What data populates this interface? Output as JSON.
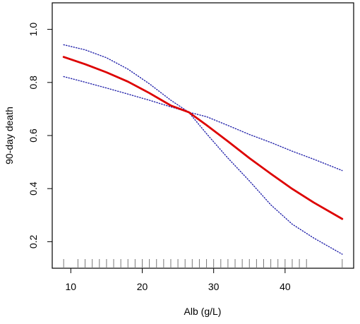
{
  "chart_data": {
    "type": "line",
    "xlabel": "Alb (g/L)",
    "ylabel": "90-day death",
    "xlim": [
      7.4,
      49.6
    ],
    "ylim": [
      0.1,
      1.1
    ],
    "x_ticks": [
      10,
      20,
      30,
      40
    ],
    "y_ticks": [
      0.2,
      0.4,
      0.6,
      0.8,
      1.0
    ],
    "x_tick_labels": [
      "10",
      "20",
      "30",
      "40"
    ],
    "y_tick_labels": [
      "0.2",
      "0.4",
      "0.6",
      "0.8",
      "1.0"
    ],
    "grid": false,
    "legend": "none",
    "series": [
      {
        "role": "estimate",
        "color": "#dd0000",
        "style": "solid",
        "x": [
          9,
          12,
          15,
          18,
          21,
          24,
          26.5,
          29,
          32,
          35,
          38,
          41,
          44,
          48
        ],
        "y": [
          0.896,
          0.869,
          0.838,
          0.803,
          0.76,
          0.713,
          0.688,
          0.639,
          0.578,
          0.515,
          0.456,
          0.399,
          0.348,
          0.286
        ]
      },
      {
        "role": "upper-ci",
        "color": "#2222aa",
        "style": "dotted",
        "x": [
          9,
          12,
          15,
          18,
          21,
          24,
          26.5,
          29,
          32,
          35,
          38,
          41,
          44,
          48
        ],
        "y": [
          0.942,
          0.923,
          0.893,
          0.85,
          0.795,
          0.733,
          0.688,
          0.671,
          0.638,
          0.604,
          0.574,
          0.541,
          0.511,
          0.468
        ]
      },
      {
        "role": "lower-ci",
        "color": "#2222aa",
        "style": "dotted",
        "x": [
          9,
          12,
          15,
          18,
          21,
          24,
          26.5,
          29,
          32,
          35,
          38,
          41,
          44,
          48
        ],
        "y": [
          0.822,
          0.801,
          0.779,
          0.756,
          0.733,
          0.708,
          0.688,
          0.607,
          0.515,
          0.429,
          0.339,
          0.266,
          0.214,
          0.153
        ]
      }
    ],
    "rug_x": [
      9,
      11,
      12,
      13,
      14,
      15,
      16,
      17,
      18,
      19,
      20,
      21,
      22,
      23,
      24,
      25,
      26,
      27,
      28,
      29,
      30,
      31,
      32,
      33,
      34,
      35,
      36,
      37,
      38,
      39,
      40,
      41,
      42,
      43,
      48
    ]
  }
}
